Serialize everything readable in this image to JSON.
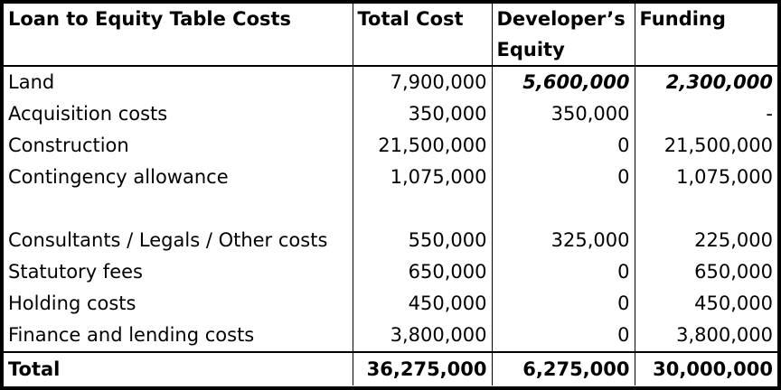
{
  "table": {
    "headers": [
      "Loan to Equity Table Costs",
      "Total Cost",
      "Developer’s Equity",
      "Funding"
    ],
    "rows": [
      {
        "label": "Land",
        "total": "7,900,000",
        "equity": "5,600,000",
        "funding": "2,300,000"
      },
      {
        "label": "Acquisition costs",
        "total": "350,000",
        "equity": "350,000",
        "funding": "-"
      },
      {
        "label": "Construction",
        "total": "21,500,000",
        "equity": "0",
        "funding": "21,500,000"
      },
      {
        "label": "Contingency allowance",
        "total": "1,075,000",
        "equity": "0",
        "funding": "1,075,000"
      },
      {
        "label": "Consultants / Legals / Other costs",
        "total": "550,000",
        "equity": "325,000",
        "funding": "225,000"
      },
      {
        "label": "Statutory fees",
        "total": "650,000",
        "equity": "0",
        "funding": "650,000"
      },
      {
        "label": "Holding costs",
        "total": "450,000",
        "equity": "0",
        "funding": "450,000"
      },
      {
        "label": "Finance and lending costs",
        "total": "3,800,000",
        "equity": "0",
        "funding": "3,800,000"
      }
    ],
    "total": {
      "label": "Total",
      "total": "36,275,000",
      "equity": "6,275,000",
      "funding": "30,000,000"
    }
  }
}
